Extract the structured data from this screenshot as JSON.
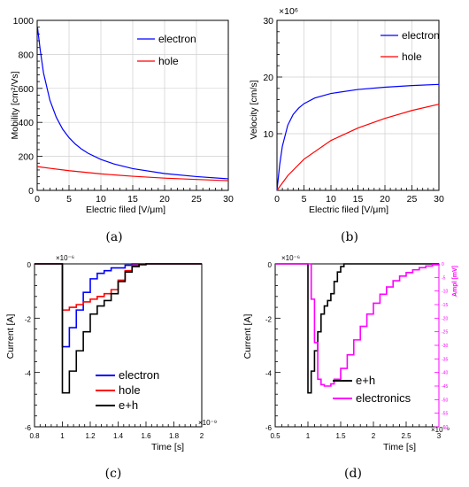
{
  "chart_data": [
    {
      "type": "line",
      "panel": "a",
      "caption": "(a)",
      "xlabel": "Electric filed [V/μm]",
      "ylabel": "Mobility [cm²/Vs]",
      "xlim": [
        0,
        30
      ],
      "ylim": [
        0,
        1000
      ],
      "xticks": [
        0,
        5,
        10,
        15,
        20,
        25,
        30
      ],
      "yticks": [
        0,
        200,
        400,
        600,
        800,
        1000
      ],
      "grid": true,
      "legend_position": "top-right",
      "series": [
        {
          "name": "electron",
          "color": "#0000ff",
          "x": [
            0.05,
            0.5,
            1,
            2,
            3,
            4,
            5,
            6,
            7,
            8,
            10,
            12,
            15,
            20,
            25,
            30
          ],
          "y": [
            960,
            820,
            690,
            530,
            430,
            360,
            310,
            272,
            242,
            218,
            182,
            156,
            128,
            99,
            81,
            68
          ]
        },
        {
          "name": "hole",
          "color": "#ff0000",
          "x": [
            0,
            2,
            5,
            10,
            15,
            20,
            25,
            30
          ],
          "y": [
            140,
            130,
            116,
            97,
            83,
            72,
            64,
            57
          ]
        }
      ]
    },
    {
      "type": "line",
      "panel": "b",
      "caption": "(b)",
      "xlabel": "Electric filed [V/μm]",
      "ylabel": "Velocity [cm/s]",
      "multiplier": "×10⁶",
      "xlim": [
        0,
        30
      ],
      "ylim": [
        0,
        30
      ],
      "xticks": [
        0,
        5,
        10,
        15,
        20,
        25,
        30
      ],
      "yticks": [
        10,
        20,
        30
      ],
      "grid": true,
      "legend_position": "top-right",
      "series": [
        {
          "name": "electron",
          "color": "#0000ff",
          "x": [
            0,
            0.5,
            1,
            2,
            3,
            4,
            5,
            7,
            10,
            15,
            20,
            25,
            30
          ],
          "y": [
            0,
            4.5,
            7.8,
            11.5,
            13.4,
            14.5,
            15.3,
            16.3,
            17.1,
            17.8,
            18.2,
            18.5,
            18.7
          ]
        },
        {
          "name": "hole",
          "color": "#ff0000",
          "x": [
            0,
            2,
            5,
            10,
            15,
            20,
            25,
            30
          ],
          "y": [
            0,
            2.6,
            5.5,
            8.8,
            11.0,
            12.7,
            14.1,
            15.2
          ]
        }
      ]
    },
    {
      "type": "line",
      "panel": "c",
      "caption": "(c)",
      "xlabel": "Time [s]",
      "ylabel": "Current [A]",
      "x_multiplier": "×10⁻⁹",
      "y_multiplier": "×10⁻⁶",
      "xlim": [
        0.8,
        2.0
      ],
      "ylim": [
        -6,
        0
      ],
      "xticks": [
        0.8,
        1.0,
        1.2,
        1.4,
        1.6,
        1.8,
        2.0
      ],
      "xtick_labels": [
        "0.8",
        "1",
        "1.2",
        "1.4",
        "1.6",
        "1.8",
        "2"
      ],
      "yticks": [
        -6,
        -4,
        -2,
        0
      ],
      "yticks_minor": true,
      "grid": false,
      "legend_position": "bottom-right",
      "series": [
        {
          "name": "electron",
          "color": "#0000ff",
          "step": true,
          "x": [
            0.8,
            1.0,
            1.0,
            1.05,
            1.1,
            1.15,
            1.2,
            1.25,
            1.3,
            1.35,
            1.45,
            1.5,
            2.0
          ],
          "y": [
            0,
            0,
            -3.05,
            -2.35,
            -1.7,
            -1.05,
            -0.55,
            -0.35,
            -0.25,
            -0.15,
            -0.05,
            0,
            0
          ]
        },
        {
          "name": "hole",
          "color": "#ff0000",
          "step": true,
          "x": [
            0.8,
            1.0,
            1.0,
            1.05,
            1.1,
            1.15,
            1.2,
            1.25,
            1.3,
            1.35,
            1.4,
            1.45,
            1.5,
            1.55,
            2.0
          ],
          "y": [
            0,
            0,
            -1.7,
            -1.6,
            -1.5,
            -1.4,
            -1.3,
            -1.2,
            -1.1,
            -0.95,
            -0.6,
            -0.25,
            -0.05,
            0,
            0
          ]
        },
        {
          "name": "e+h",
          "color": "#000000",
          "step": true,
          "x": [
            0.8,
            1.0,
            1.0,
            1.05,
            1.1,
            1.15,
            1.2,
            1.25,
            1.3,
            1.35,
            1.4,
            1.45,
            1.5,
            1.55,
            1.6,
            2.0
          ],
          "y": [
            0,
            0,
            -4.75,
            -3.95,
            -3.2,
            -2.5,
            -1.85,
            -1.55,
            -1.35,
            -1.1,
            -0.65,
            -0.3,
            -0.1,
            -0.03,
            0,
            0
          ]
        }
      ]
    },
    {
      "type": "line",
      "panel": "d",
      "caption": "(d)",
      "xlabel": "Time [s]",
      "ylabel": "Current [A]",
      "y2label": "Ampl [mV]",
      "x_multiplier": "×10⁻⁹",
      "y_multiplier": "×10⁻⁶",
      "xlim": [
        0.5,
        3.0
      ],
      "ylim": [
        -6,
        0
      ],
      "xticks": [
        0.5,
        1.0,
        1.5,
        2.0,
        2.5,
        3.0
      ],
      "xtick_labels": [
        "0.5",
        "1",
        "1.5",
        "2",
        "2.5",
        "3"
      ],
      "yticks": [
        -6,
        -4,
        -2,
        0
      ],
      "y2lim": [
        -60,
        0
      ],
      "y2ticks": [
        0,
        -5,
        -10,
        -15,
        -20,
        -25,
        -30,
        -35,
        -40,
        -45,
        -50,
        -55,
        -60
      ],
      "grid": false,
      "legend_position": "bottom-right",
      "series": [
        {
          "name": "e+h",
          "color": "#000000",
          "step": true,
          "x": [
            0.5,
            1.0,
            1.0,
            1.05,
            1.1,
            1.15,
            1.2,
            1.25,
            1.3,
            1.35,
            1.4,
            1.45,
            1.5,
            1.55,
            3.0
          ],
          "y": [
            0,
            0,
            -4.75,
            -3.95,
            -3.2,
            -2.5,
            -1.85,
            -1.55,
            -1.35,
            -1.1,
            -0.65,
            -0.3,
            -0.1,
            0,
            0
          ]
        },
        {
          "name": "electronics",
          "color": "#ff00ff",
          "step": true,
          "x": [
            0.5,
            1.0,
            1.05,
            1.1,
            1.15,
            1.2,
            1.25,
            1.3,
            1.35,
            1.4,
            1.5,
            1.6,
            1.7,
            1.8,
            1.9,
            2.0,
            2.1,
            2.2,
            2.3,
            2.4,
            2.5,
            2.6,
            2.7,
            2.8,
            2.9,
            3.0
          ],
          "y": [
            0,
            0,
            -1.3,
            -2.9,
            -4.25,
            -4.45,
            -4.5,
            -4.5,
            -4.42,
            -4.25,
            -3.85,
            -3.35,
            -2.8,
            -2.3,
            -1.85,
            -1.45,
            -1.12,
            -0.85,
            -0.62,
            -0.45,
            -0.32,
            -0.22,
            -0.14,
            -0.08,
            -0.03,
            0
          ]
        }
      ]
    }
  ]
}
